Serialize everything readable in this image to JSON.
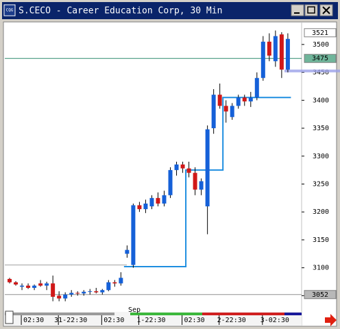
{
  "window_title": "S.CECO - Career Education Corp, 30 Min",
  "app_icon": "CQG",
  "chart_data": {
    "type": "candlestick",
    "categories": [
      null,
      null,
      null,
      "02:30",
      null,
      null,
      null,
      null,
      null,
      "31-22:30",
      null,
      null,
      null,
      null,
      null,
      null,
      "02:30",
      null,
      null,
      null,
      null,
      null,
      "1-22:30",
      null,
      null,
      null,
      null,
      null,
      null,
      "02:30",
      null,
      null,
      null,
      null,
      null,
      "2-22:30",
      null,
      null,
      null,
      null,
      null,
      null,
      "3-02:30",
      null,
      null,
      null
    ],
    "open": [
      3080,
      3074,
      3066,
      3068,
      3064,
      3072,
      3068,
      3072,
      3050,
      3045,
      3052,
      3055,
      3054,
      3057,
      3058,
      3056,
      3060,
      3074,
      3072,
      3125,
      3105,
      3212,
      3205,
      3210,
      3225,
      3215,
      3230,
      3275,
      3285,
      3278,
      3270,
      3240,
      3210,
      3350,
      3410,
      3390,
      3370,
      3390,
      3405,
      3398,
      3405,
      3440,
      3505,
      3470,
      3518,
      3455
    ],
    "high": [
      3082,
      3076,
      3072,
      3072,
      3070,
      3078,
      3075,
      3086,
      3058,
      3056,
      3060,
      3058,
      3060,
      3062,
      3064,
      3062,
      3078,
      3078,
      3092,
      3140,
      3215,
      3218,
      3222,
      3230,
      3235,
      3238,
      3280,
      3290,
      3290,
      3290,
      3280,
      3260,
      3355,
      3420,
      3430,
      3400,
      3395,
      3410,
      3410,
      3415,
      3450,
      3515,
      3520,
      3525,
      3522,
      3520
    ],
    "low": [
      3072,
      3068,
      3060,
      3062,
      3060,
      3066,
      3060,
      3040,
      3040,
      3040,
      3048,
      3050,
      3050,
      3052,
      3054,
      3052,
      3058,
      3066,
      3068,
      3118,
      3100,
      3200,
      3198,
      3205,
      3210,
      3210,
      3225,
      3265,
      3270,
      3262,
      3230,
      3230,
      3160,
      3340,
      3385,
      3360,
      3365,
      3385,
      3390,
      3388,
      3400,
      3435,
      3470,
      3460,
      3440,
      3450
    ],
    "close": [
      3074,
      3070,
      3068,
      3064,
      3068,
      3068,
      3072,
      3048,
      3045,
      3052,
      3055,
      3054,
      3057,
      3058,
      3056,
      3060,
      3074,
      3072,
      3082,
      3132,
      3212,
      3205,
      3215,
      3225,
      3215,
      3230,
      3275,
      3285,
      3278,
      3270,
      3240,
      3255,
      3348,
      3410,
      3390,
      3380,
      3390,
      3405,
      3398,
      3405,
      3440,
      3505,
      3480,
      3515,
      3455,
      3510
    ],
    "up_color": "#1560d8",
    "down_color": "#d01818",
    "indicator": {
      "color": "#1e8ee0",
      "values": [
        null,
        null,
        null,
        null,
        null,
        null,
        null,
        null,
        null,
        null,
        null,
        null,
        null,
        null,
        null,
        null,
        null,
        null,
        null,
        3102,
        3102,
        3102,
        3102,
        3102,
        3102,
        3102,
        3102,
        3102,
        3102,
        3275,
        3275,
        3275,
        3275,
        3275,
        3275,
        3405,
        3405,
        3405,
        3405,
        3405,
        3405,
        3405,
        3405,
        3405,
        3405,
        3405
      ]
    },
    "ylim": [
      3021,
      3533
    ],
    "yticks": [
      3050,
      3100,
      3150,
      3200,
      3250,
      3300,
      3350,
      3400,
      3450,
      3500
    ],
    "price_markers": [
      {
        "value": 3521,
        "color": "#ffffff"
      },
      {
        "value": 3475,
        "color": "#6fb59a"
      },
      {
        "value": 3052,
        "color": "#b8b8b8"
      }
    ],
    "levels": [
      {
        "value": 3475,
        "color": "#2e8b6e"
      },
      {
        "value": 3105,
        "color": "#a0a0a0"
      },
      {
        "value": 3052,
        "color": "#909090"
      }
    ],
    "annotation": "Sep"
  }
}
